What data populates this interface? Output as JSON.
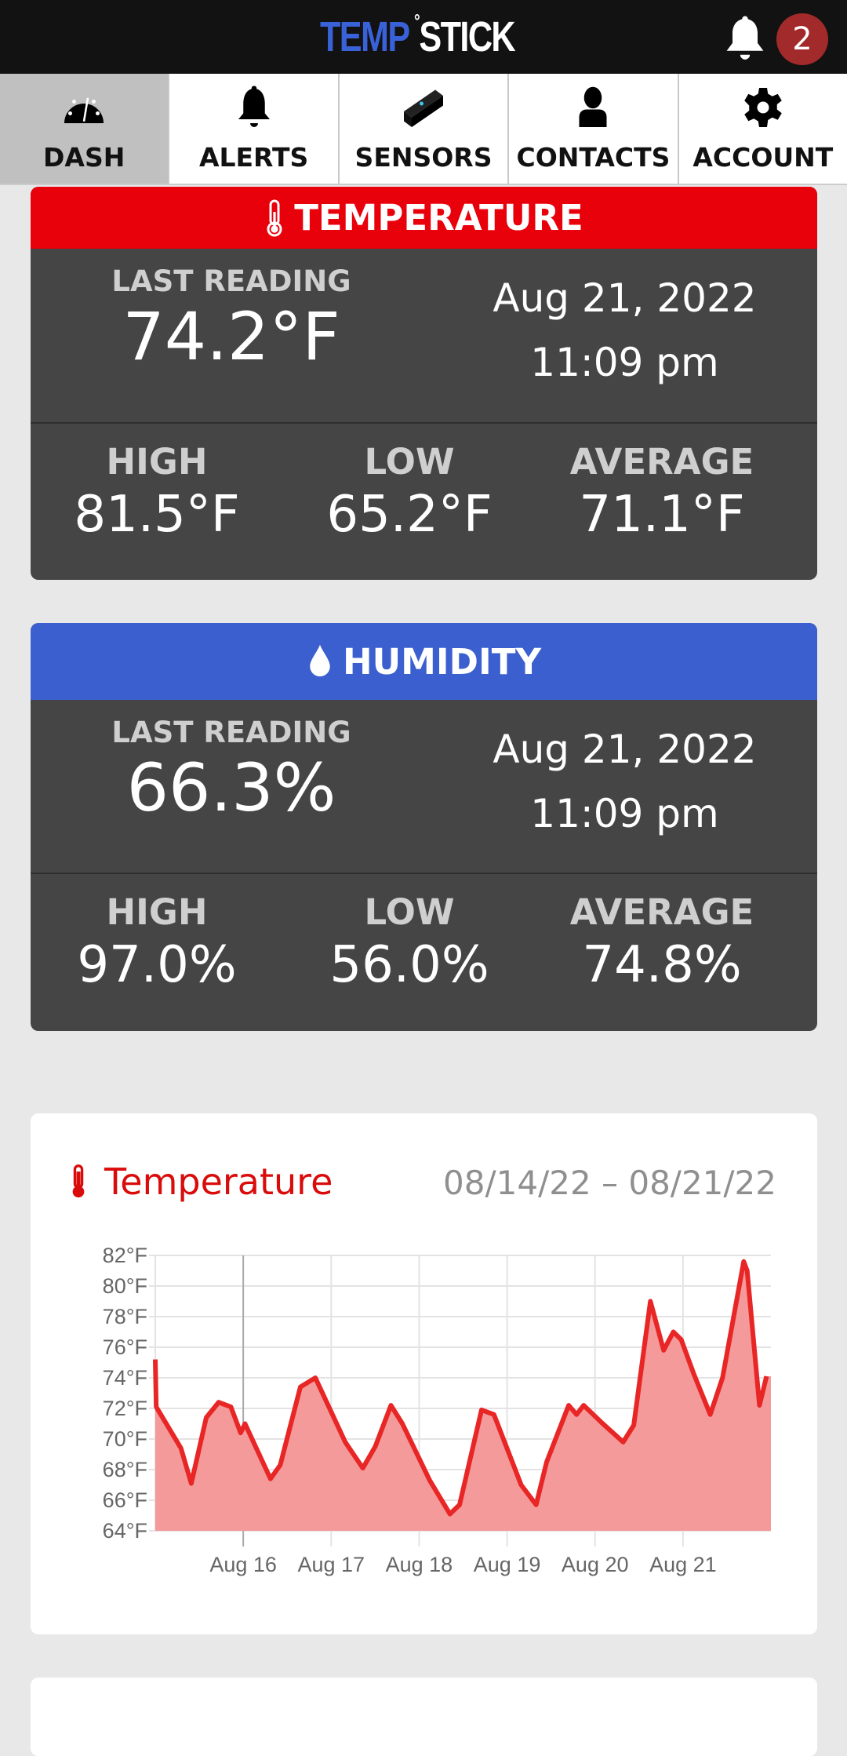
{
  "header": {
    "logo_text": "TEMP°STICK",
    "logo_part1": "TEMP",
    "logo_part2": "STICK",
    "notification_count": "2"
  },
  "nav": {
    "tabs": [
      {
        "label": "DASH",
        "icon": "gauge-icon",
        "active": true
      },
      {
        "label": "ALERTS",
        "icon": "bell-icon"
      },
      {
        "label": "SENSORS",
        "icon": "sensor-icon"
      },
      {
        "label": "CONTACTS",
        "icon": "person-icon"
      },
      {
        "label": "ACCOUNT",
        "icon": "gear-icon"
      }
    ]
  },
  "temperature": {
    "title": "TEMPERATURE",
    "color": "#e8000b",
    "last_reading_label": "LAST READING",
    "last_reading": "74.2°F",
    "date": "Aug 21, 2022",
    "time": "11:09 pm",
    "high_label": "HIGH",
    "high": "81.5°F",
    "low_label": "LOW",
    "low": "65.2°F",
    "avg_label": "AVERAGE",
    "avg": "71.1°F"
  },
  "humidity": {
    "title": "HUMIDITY",
    "color": "#3b5fcf",
    "last_reading_label": "LAST READING",
    "last_reading": "66.3%",
    "date": "Aug 21, 2022",
    "time": "11:09 pm",
    "high_label": "HIGH",
    "high": "97.0%",
    "low_label": "LOW",
    "low": "56.0%",
    "avg_label": "AVERAGE",
    "avg": "74.8%"
  },
  "chart_card": {
    "title": "Temperature",
    "date_range": "08/14/22 – 08/21/22"
  },
  "chart_data": {
    "type": "area",
    "title": "Temperature",
    "line_color": "#e82626",
    "fill_color": "#f59a9a",
    "grid": true,
    "ylim": [
      64,
      82
    ],
    "xlim": [
      "2022-08-15T00:00",
      "2022-08-22T00:00"
    ],
    "yticks": [
      "64°F",
      "66°F",
      "68°F",
      "70°F",
      "72°F",
      "74°F",
      "76°F",
      "78°F",
      "80°F",
      "82°F"
    ],
    "xticks": [
      "Aug 16",
      "Aug 17",
      "Aug 18",
      "Aug 19",
      "Aug 20",
      "Aug 21"
    ],
    "points": [
      [
        "2022-08-15T00:00",
        75.2
      ],
      [
        "2022-08-15T00:15",
        72.1
      ],
      [
        "2022-08-15T07:00",
        69.4
      ],
      [
        "2022-08-15T09:50",
        67.1
      ],
      [
        "2022-08-15T13:55",
        71.4
      ],
      [
        "2022-08-15T17:17",
        72.4
      ],
      [
        "2022-08-15T20:38",
        72.1
      ],
      [
        "2022-08-15T23:17",
        70.4
      ],
      [
        "2022-08-16T00:29",
        71.0
      ],
      [
        "2022-08-16T07:26",
        67.4
      ],
      [
        "2022-08-16T10:05",
        68.3
      ],
      [
        "2022-08-16T15:36",
        73.4
      ],
      [
        "2022-08-16T19:41",
        74.0
      ],
      [
        "2022-08-17T03:50",
        69.8
      ],
      [
        "2022-08-17T08:38",
        68.1
      ],
      [
        "2022-08-17T12:00",
        69.5
      ],
      [
        "2022-08-17T16:19",
        72.2
      ],
      [
        "2022-08-17T19:26",
        71.0
      ],
      [
        "2022-08-18T02:53",
        67.3
      ],
      [
        "2022-08-18T08:24",
        65.1
      ],
      [
        "2022-08-18T11:02",
        65.7
      ],
      [
        "2022-08-18T17:02",
        71.9
      ],
      [
        "2022-08-18T20:24",
        71.6
      ],
      [
        "2022-08-19T03:50",
        67.0
      ],
      [
        "2022-08-19T07:55",
        65.7
      ],
      [
        "2022-08-19T10:48",
        68.5
      ],
      [
        "2022-08-19T16:48",
        72.2
      ],
      [
        "2022-08-19T18:58",
        71.6
      ],
      [
        "2022-08-19T20:53",
        72.2
      ],
      [
        "2022-08-20T01:41",
        71.1
      ],
      [
        "2022-08-20T07:41",
        69.8
      ],
      [
        "2022-08-20T10:34",
        70.9
      ],
      [
        "2022-08-20T15:07",
        79.0
      ],
      [
        "2022-08-20T18:43",
        75.8
      ],
      [
        "2022-08-20T21:22",
        77.0
      ],
      [
        "2022-08-20T23:31",
        76.5
      ],
      [
        "2022-08-21T02:53",
        74.3
      ],
      [
        "2022-08-21T07:26",
        71.6
      ],
      [
        "2022-08-21T10:48",
        74.0
      ],
      [
        "2022-08-21T16:34",
        81.6
      ],
      [
        "2022-08-21T17:31",
        81.0
      ],
      [
        "2022-08-21T20:53",
        72.2
      ],
      [
        "2022-08-21T22:48",
        74.1
      ]
    ]
  }
}
